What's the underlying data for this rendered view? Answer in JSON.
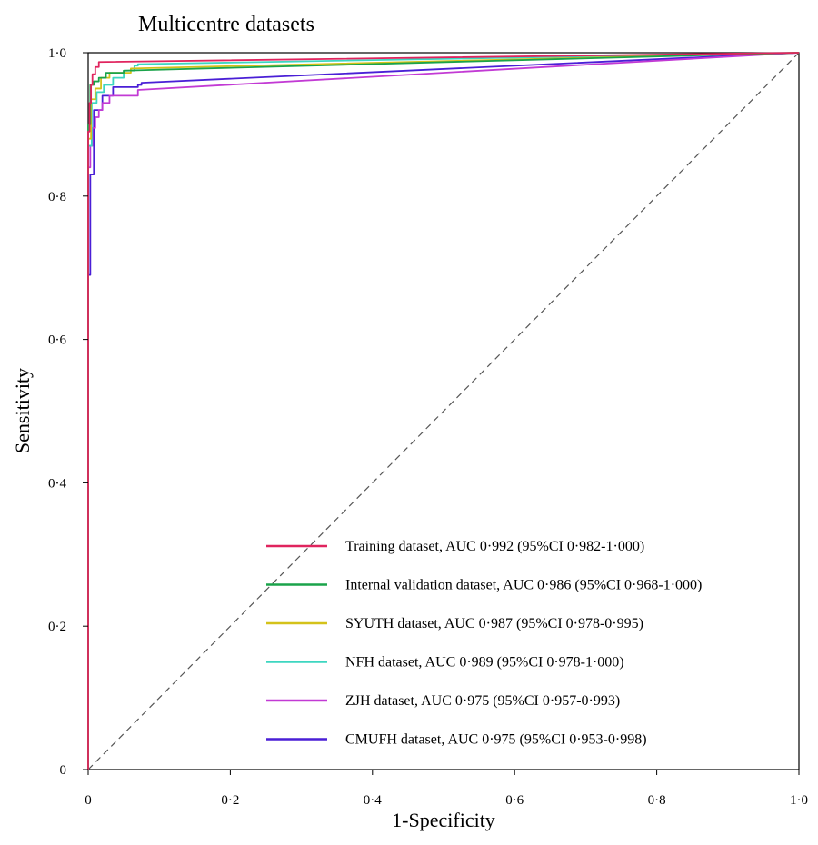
{
  "chart_data": {
    "type": "line",
    "title": "Multicentre datasets",
    "xlabel": "1-Specificity",
    "ylabel": "Sensitivity",
    "xlim": [
      0,
      1
    ],
    "ylim": [
      0,
      1
    ],
    "x_ticks": [
      "0",
      "0·2",
      "0·4",
      "0·6",
      "0·8",
      "1·0"
    ],
    "y_ticks": [
      "0",
      "0·2",
      "0·4",
      "0·6",
      "0·8",
      "1·0"
    ],
    "x_tick_values": [
      0,
      0.2,
      0.4,
      0.6,
      0.8,
      1.0
    ],
    "y_tick_values": [
      0,
      0.2,
      0.4,
      0.6,
      0.8,
      1.0
    ],
    "grid": false,
    "legend_position": "bottom-right",
    "reference_line": {
      "x": [
        0,
        1
      ],
      "y": [
        0,
        1
      ],
      "style": "dashed",
      "color": "#555555"
    },
    "series": [
      {
        "name": "Training dataset, AUC 0·992 (95%CI 0·982-1·000)",
        "color": "#e0245e",
        "x": [
          0,
          0,
          0.002,
          0.004,
          0.006,
          0.01,
          0.015,
          1.0
        ],
        "y": [
          0,
          0.89,
          0.93,
          0.955,
          0.97,
          0.98,
          0.987,
          1.0
        ]
      },
      {
        "name": "Internal validation dataset, AUC 0·986 (95%CI 0·968-1·000)",
        "color": "#1aa34a",
        "x": [
          0,
          0,
          0.003,
          0.008,
          0.015,
          0.025,
          0.05,
          1.0
        ],
        "y": [
          0,
          0.9,
          0.955,
          0.96,
          0.965,
          0.972,
          0.975,
          1.0
        ]
      },
      {
        "name": "SYUTH dataset, AUC 0·987 (95%CI 0·978-0·995)",
        "color": "#d4c21a",
        "x": [
          0,
          0,
          0.004,
          0.01,
          0.018,
          0.03,
          0.06,
          1.0
        ],
        "y": [
          0,
          0.88,
          0.935,
          0.95,
          0.965,
          0.972,
          0.978,
          1.0
        ]
      },
      {
        "name": "NFH dataset, AUC 0·989 (95%CI 0·978-1·000)",
        "color": "#3dd6c0",
        "x": [
          0,
          0,
          0.005,
          0.012,
          0.022,
          0.035,
          0.05,
          0.065,
          0.07,
          1.0
        ],
        "y": [
          0,
          0.87,
          0.93,
          0.945,
          0.955,
          0.965,
          0.975,
          0.982,
          0.984,
          1.0
        ]
      },
      {
        "name": "ZJH dataset, AUC 0·975 (95%CI 0·957-0·993)",
        "color": "#c23ad4",
        "x": [
          0,
          0,
          0.003,
          0.006,
          0.01,
          0.015,
          0.02,
          0.03,
          0.07,
          1.0
        ],
        "y": [
          0,
          0.84,
          0.87,
          0.895,
          0.91,
          0.92,
          0.93,
          0.94,
          0.948,
          1.0
        ]
      },
      {
        "name": "CMUFH dataset, AUC 0·975 (95%CI 0·953-0·998)",
        "color": "#4a1fd6",
        "x": [
          0,
          0,
          0.003,
          0.008,
          0.02,
          0.035,
          0.07,
          0.075,
          1.0
        ],
        "y": [
          0,
          0.69,
          0.83,
          0.92,
          0.94,
          0.952,
          0.955,
          0.958,
          1.0
        ]
      }
    ]
  }
}
